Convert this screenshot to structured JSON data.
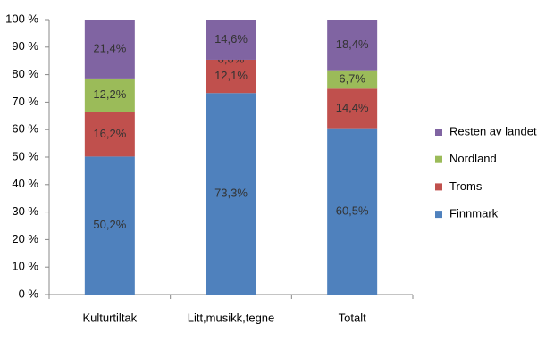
{
  "chart_data": {
    "type": "stacked-bar",
    "categories": [
      "Kulturtiltak",
      "Litt,musikk,tegne",
      "Totalt"
    ],
    "series": [
      {
        "name": "Finnmark",
        "color": "#4f81bd",
        "values": [
          50.2,
          73.3,
          60.5
        ],
        "value_labels": [
          "50,2%",
          "73,3%",
          "60,5%"
        ]
      },
      {
        "name": "Troms",
        "color": "#c0504d",
        "values": [
          16.2,
          12.1,
          14.4
        ],
        "value_labels": [
          "16,2%",
          "12,1%",
          "14,4%"
        ]
      },
      {
        "name": "Nordland",
        "color": "#9bbb59",
        "values": [
          12.2,
          0.0,
          6.7
        ],
        "value_labels": [
          "12,2%",
          "0,0%",
          "6,7%"
        ]
      },
      {
        "name": "Resten av landet",
        "color": "#8064a2",
        "values": [
          21.4,
          14.6,
          18.4
        ],
        "value_labels": [
          "21,4%",
          "14,6%",
          "18,4%"
        ]
      }
    ],
    "ylim": [
      0,
      100
    ],
    "yticks": [
      {
        "value": 0,
        "label": "0 %"
      },
      {
        "value": 10,
        "label": "10 %"
      },
      {
        "value": 20,
        "label": "20 %"
      },
      {
        "value": 30,
        "label": "30 %"
      },
      {
        "value": 40,
        "label": "40 %"
      },
      {
        "value": 50,
        "label": "50 %"
      },
      {
        "value": 60,
        "label": "60 %"
      },
      {
        "value": 70,
        "label": "70 %"
      },
      {
        "value": 80,
        "label": "80 %"
      },
      {
        "value": 90,
        "label": "90 %"
      },
      {
        "value": 100,
        "label": "100 %"
      }
    ],
    "legend": "right"
  }
}
